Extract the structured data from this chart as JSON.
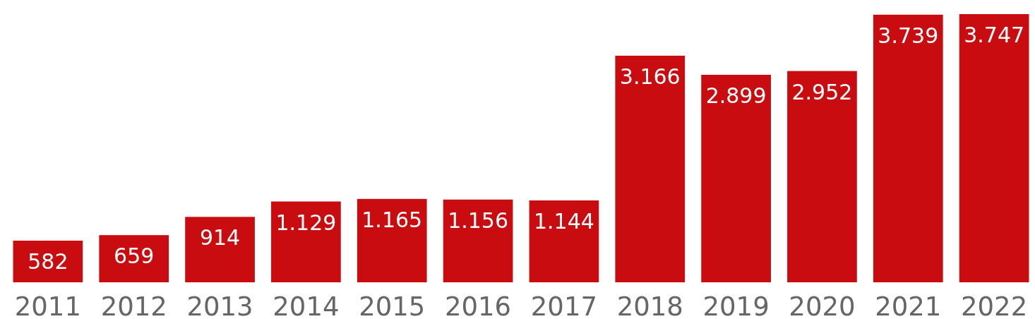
{
  "chart_data": {
    "type": "bar",
    "categories": [
      "2011",
      "2012",
      "2013",
      "2014",
      "2015",
      "2016",
      "2017",
      "2018",
      "2019",
      "2020",
      "2021",
      "2022"
    ],
    "values": [
      582,
      659,
      914,
      1129,
      1165,
      1156,
      1144,
      3166,
      2899,
      2952,
      3739,
      3747
    ],
    "value_labels": [
      "582",
      "659",
      "914",
      "1.129",
      "1.165",
      "1.156",
      "1.144",
      "3.166",
      "2.899",
      "2.952",
      "3.739",
      "3.747"
    ],
    "color": "#c80c10"
  }
}
